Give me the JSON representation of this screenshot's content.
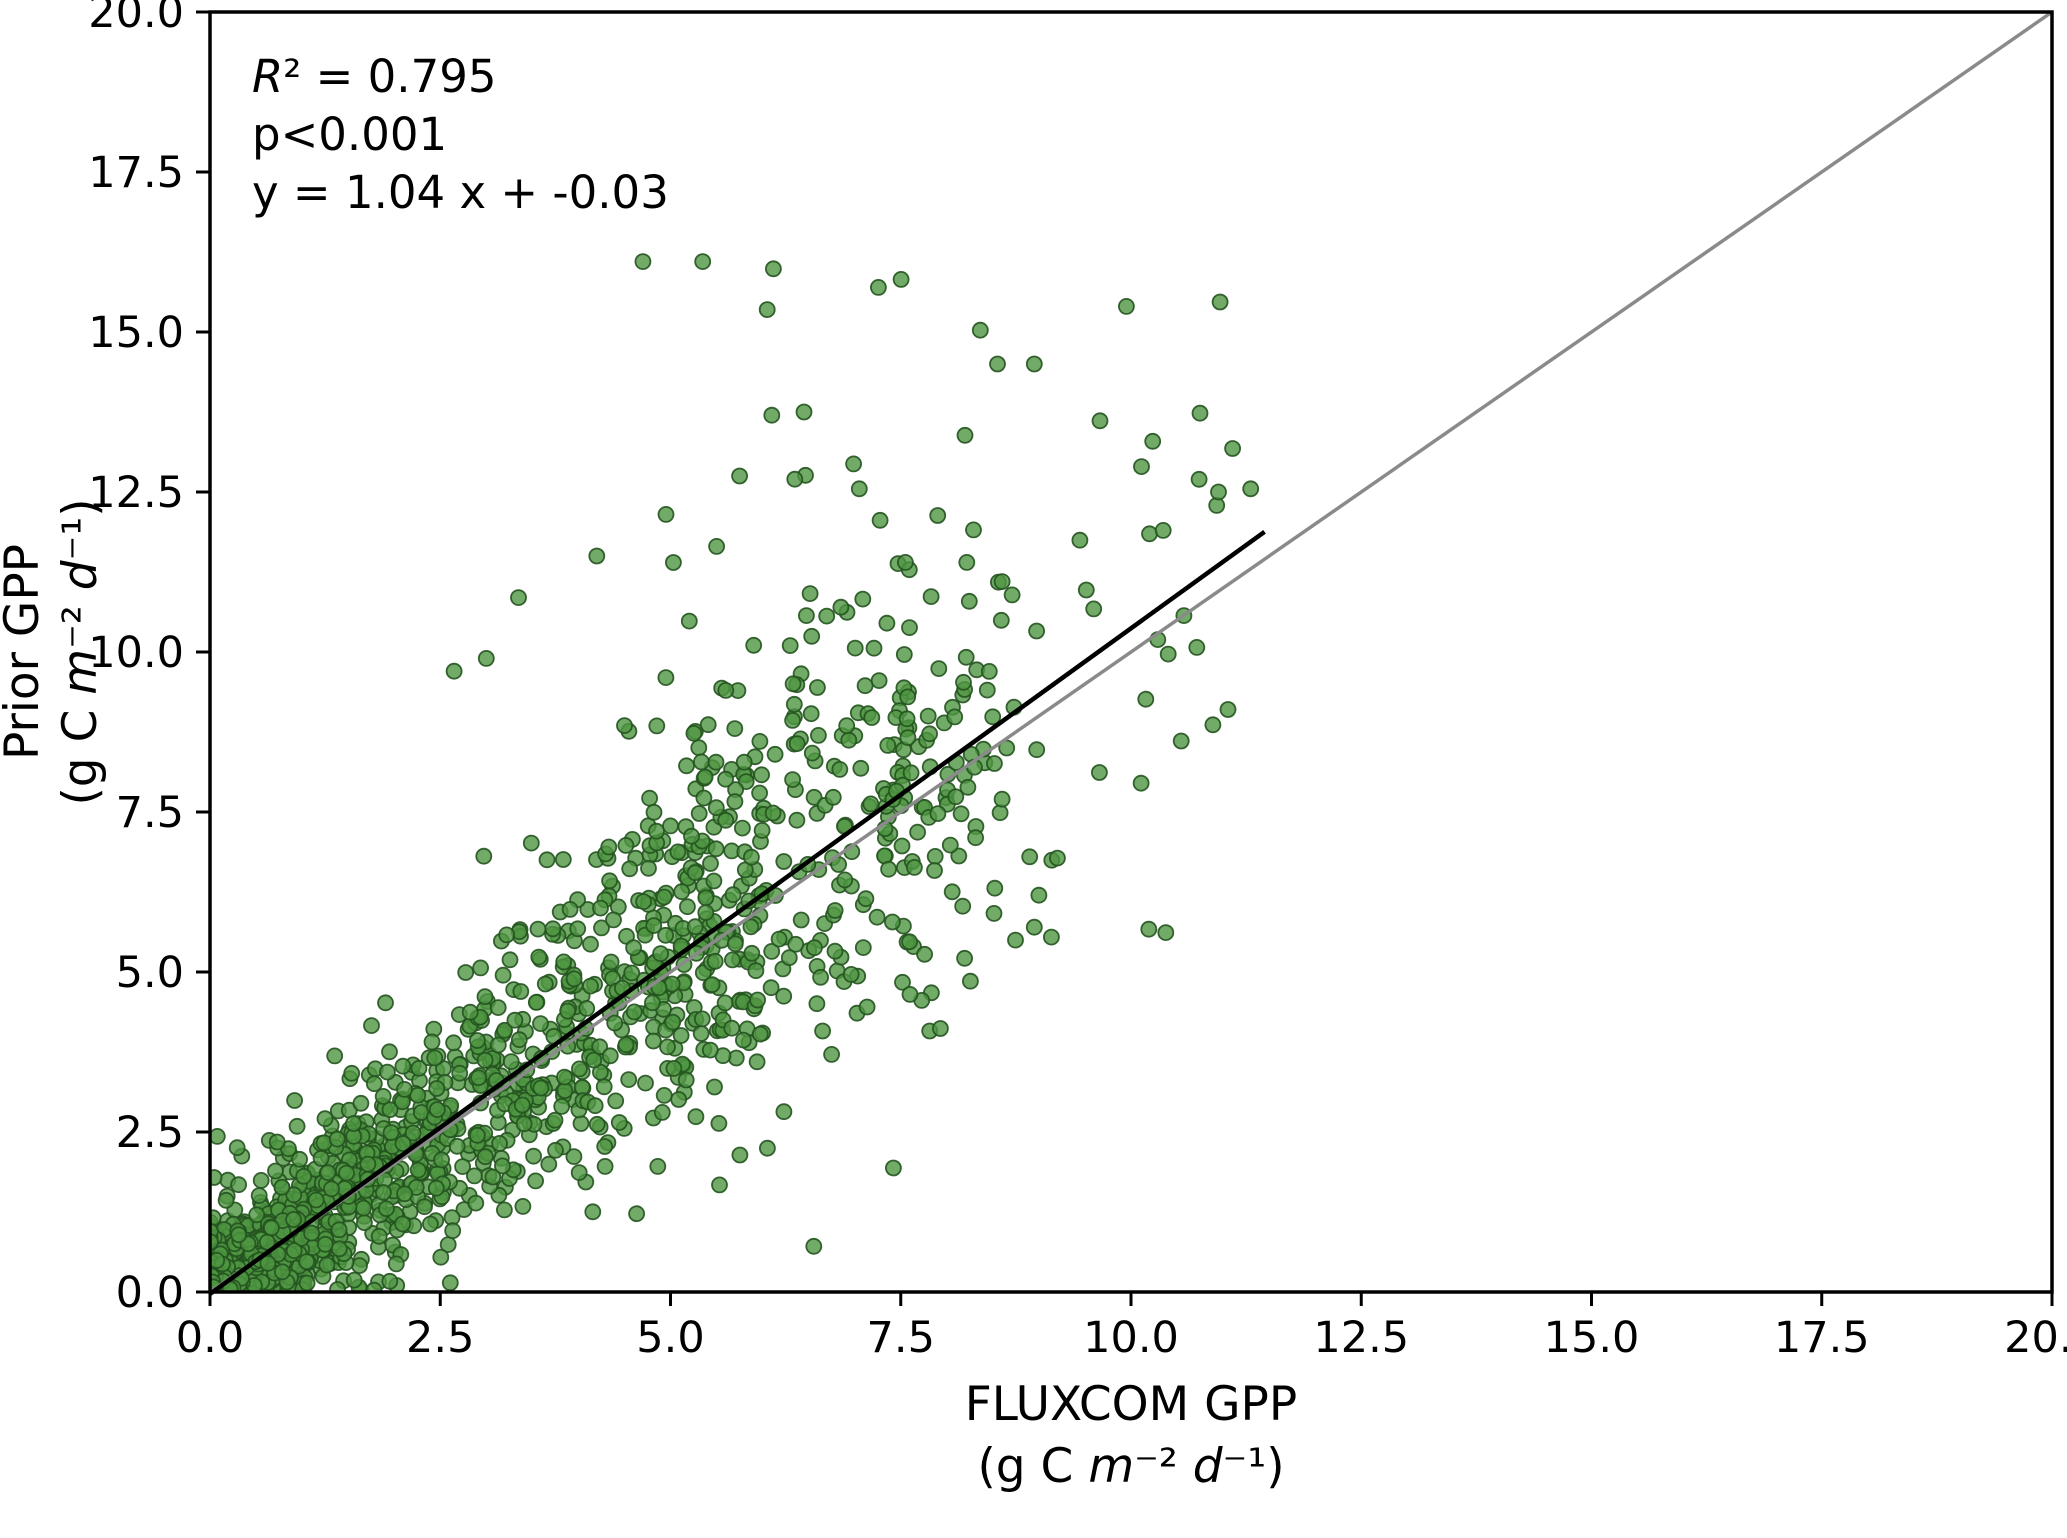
{
  "chart_data": {
    "type": "scatter",
    "title": "",
    "xlabel": "FLUXCOM GPP",
    "xlabel_units": "(g C m⁻² d⁻¹)",
    "ylabel": "Prior GPP",
    "ylabel_units": "(g C m⁻² d⁻¹)",
    "xlim": [
      0,
      20
    ],
    "ylim": [
      0,
      20
    ],
    "grid": false,
    "legend": "none",
    "axes": {
      "xlabel_lines": [
        [
          {
            "text": "FLUXCOM GPP",
            "italic": false
          }
        ],
        [
          {
            "text": "(g C ",
            "italic": false
          },
          {
            "text": "m",
            "italic": true
          },
          {
            "text": "⁻² ",
            "italic": false
          },
          {
            "text": "d",
            "italic": true
          },
          {
            "text": "⁻¹",
            "italic": false
          },
          {
            "text": ")",
            "italic": false
          }
        ]
      ],
      "ylabel_lines": [
        [
          {
            "text": "Prior GPP",
            "italic": false
          }
        ],
        [
          {
            "text": "(g C ",
            "italic": false
          },
          {
            "text": "m",
            "italic": true
          },
          {
            "text": "⁻² ",
            "italic": false
          },
          {
            "text": "d",
            "italic": true
          },
          {
            "text": "⁻¹",
            "italic": false
          },
          {
            "text": ")",
            "italic": false
          }
        ]
      ]
    },
    "ticks": {
      "x": {
        "values": [
          0.0,
          2.5,
          5.0,
          7.5,
          10.0,
          12.5,
          15.0,
          17.5,
          20.0
        ],
        "labels": [
          "0.0",
          "2.5",
          "5.0",
          "7.5",
          "10.0",
          "12.5",
          "15.0",
          "17.5",
          "20.0"
        ]
      },
      "y": {
        "values": [
          0.0,
          2.5,
          5.0,
          7.5,
          10.0,
          12.5,
          15.0,
          17.5,
          20.0
        ],
        "labels": [
          "0.0",
          "2.5",
          "5.0",
          "7.5",
          "10.0",
          "12.5",
          "15.0",
          "17.5",
          "20.0"
        ]
      }
    },
    "annotation_lines": [
      [
        {
          "text": "R",
          "italic": true
        },
        {
          "text": "² = 0.795",
          "italic": false
        }
      ],
      [
        {
          "text": "p<0.001",
          "italic": false
        }
      ],
      [
        {
          "text": "y = 1.04 x + -0.03",
          "italic": false
        }
      ]
    ],
    "stats": {
      "r_squared": 0.795,
      "p_text": "p<0.001",
      "slope": 1.04,
      "intercept": -0.03
    },
    "identity_line": {
      "color": "#8a8a8a",
      "width": 3.5,
      "x0": 0,
      "y0": 0,
      "x1": 20,
      "y1": 20
    },
    "fit_line": {
      "color": "#000000",
      "width": 4.5,
      "slope": 1.04,
      "intercept": -0.03,
      "x0": 0,
      "x1": 11.45
    },
    "marker": {
      "fill": "#4f9642",
      "edge": "#24531f",
      "radius": 7.5,
      "fill_opacity": 0.8,
      "edge_opacity": 0.9,
      "edge_width": 1.8
    },
    "outlier_points": [
      [
        4.7,
        16.1
      ],
      [
        5.35,
        16.1
      ],
      [
        6.05,
        15.35
      ],
      [
        9.95,
        15.4
      ],
      [
        8.55,
        14.5
      ],
      [
        8.95,
        14.5
      ],
      [
        6.1,
        13.7
      ],
      [
        6.45,
        13.75
      ],
      [
        5.75,
        12.75
      ],
      [
        6.35,
        12.7
      ],
      [
        7.05,
        12.55
      ],
      [
        10.95,
        12.5
      ],
      [
        11.3,
        12.55
      ],
      [
        10.35,
        11.9
      ],
      [
        4.2,
        11.5
      ],
      [
        5.5,
        11.65
      ],
      [
        7.55,
        11.4
      ],
      [
        8.6,
        11.1
      ],
      [
        3.35,
        10.85
      ],
      [
        6.85,
        10.7
      ],
      [
        7.35,
        10.45
      ],
      [
        6.3,
        10.1
      ],
      [
        3.0,
        9.9
      ],
      [
        2.65,
        9.7
      ],
      [
        4.95,
        9.6
      ],
      [
        5.6,
        9.4
      ],
      [
        4.5,
        8.85
      ],
      [
        8.65,
        8.5
      ],
      [
        8.3,
        8.2
      ],
      [
        8.6,
        7.7
      ],
      [
        8.9,
        6.8
      ],
      [
        9.0,
        6.2
      ],
      [
        8.95,
        5.7
      ],
      [
        7.6,
        4.65
      ]
    ],
    "point_cloud": {
      "seed": 1337,
      "n": 2000,
      "x_scale": 11.2,
      "x_exponent": 2.8,
      "tail_threshold": 8.6,
      "tail_keep_prob": 0.18,
      "noise_base": 0.35,
      "noise_slope": 0.22,
      "plume_prob": 0.05,
      "plume_base": 0.8,
      "plume_slope": 0.45,
      "y_min": 0.02,
      "y_max": 16.2
    }
  }
}
